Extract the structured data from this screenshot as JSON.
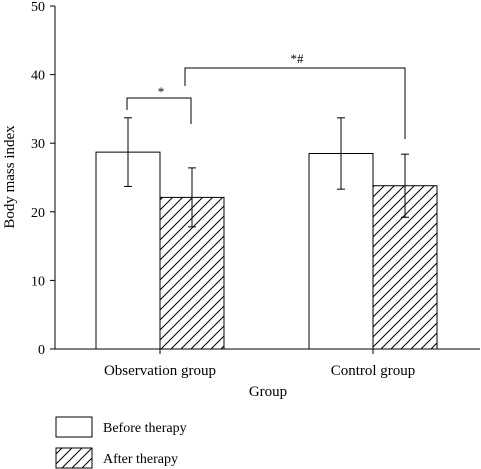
{
  "chart_data": {
    "type": "bar",
    "title": "",
    "xlabel": "Group",
    "ylabel": "Body mass index",
    "ylim": [
      0,
      50
    ],
    "yticks": [
      "0",
      "10",
      "20",
      "30",
      "40",
      "50"
    ],
    "categories": [
      "Observation group",
      "Control group"
    ],
    "series": [
      {
        "name": "Before therapy",
        "pattern": "solid-white",
        "values": [
          28.7,
          28.5
        ],
        "errors": [
          5.0,
          5.2
        ]
      },
      {
        "name": "After therapy",
        "pattern": "diagonal-hatch",
        "values": [
          22.1,
          23.8
        ],
        "errors": [
          4.3,
          4.6
        ]
      }
    ],
    "annotations": [
      {
        "text": "*",
        "between": "Observation group: Before therapy vs After therapy"
      },
      {
        "text": "*#",
        "between": "Observation group After therapy vs Control group After therapy"
      }
    ],
    "legend_position": "bottom-left",
    "grid": false,
    "colors": {
      "bar_fill": "#ffffff",
      "stroke": "#000000"
    }
  }
}
